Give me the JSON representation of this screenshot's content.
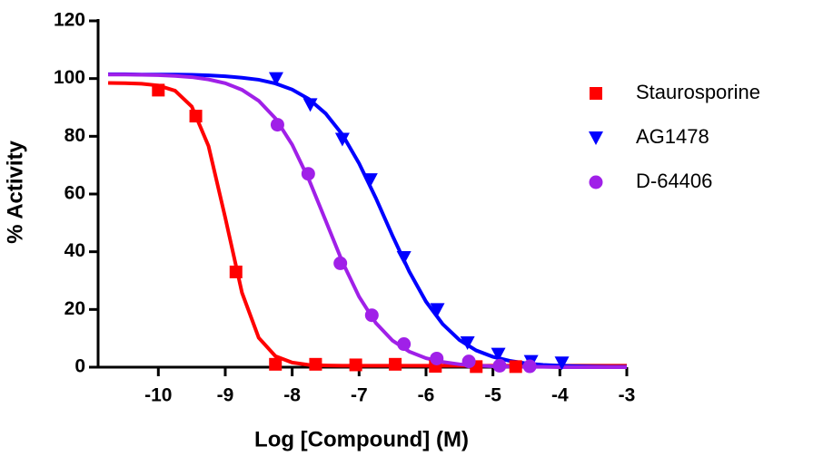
{
  "chart_data": {
    "type": "dose-response",
    "x_label": "Log [Compound] (M)",
    "y_label": "% Activity",
    "xlim": [
      -10.9,
      -3
    ],
    "xticks": [
      -10,
      -9,
      -8,
      -7,
      -6,
      -5,
      -4,
      -3
    ],
    "ylim": [
      0,
      120
    ],
    "yticks": [
      0,
      20,
      40,
      60,
      80,
      100,
      120
    ],
    "curve_x": [
      -10.75,
      -10.5,
      -10.25,
      -10,
      -9.75,
      -9.5,
      -9.25,
      -9,
      -8.75,
      -8.5,
      -8.25,
      -8,
      -7.75,
      -7.5,
      -7.25,
      -7,
      -6.75,
      -6.5,
      -6.25,
      -6,
      -5.75,
      -5.5,
      -5.25,
      -5,
      -4.75,
      -4.5,
      -4.25,
      -4,
      -3.75,
      -3.5,
      -3.25,
      -3
    ],
    "series": [
      {
        "name": "Staurosporine",
        "color": "#ff0000",
        "marker": "square",
        "x": [
          -10.0,
          -9.44,
          -8.84,
          -8.25,
          -7.65,
          -7.05,
          -6.46,
          -5.86,
          -5.25,
          -4.66
        ],
        "values": [
          96,
          87,
          33,
          1,
          1,
          0.8,
          1,
          0.3,
          0.2,
          0.2
        ],
        "curve": [
          98.5,
          98.4,
          98.2,
          97.6,
          95.8,
          90.3,
          76.6,
          51.8,
          25.8,
          10.2,
          3.8,
          1.6,
          0.8,
          0.6,
          0.5,
          0.5,
          0.5,
          0.5,
          0.5,
          0.5,
          0.5,
          0.5,
          0.5,
          0.5,
          0.5,
          0.5,
          0.5,
          0.5,
          0.5,
          0.5,
          0.5,
          0.5
        ]
      },
      {
        "name": "AG1478",
        "color": "#0000ff",
        "marker": "triangle-down",
        "x": [
          -8.24,
          -7.73,
          -7.25,
          -6.83,
          -6.33,
          -5.83,
          -5.38,
          -4.92,
          -4.43,
          -3.97
        ],
        "values": [
          100,
          91,
          79,
          65,
          38,
          20,
          8.5,
          4.5,
          2,
          1.5
        ],
        "curve": [
          101.5,
          101.5,
          101.4,
          101.4,
          101.4,
          101.3,
          101.1,
          100.8,
          100.3,
          99.6,
          98.3,
          96.2,
          92.9,
          87.9,
          80.6,
          70.6,
          58.6,
          45.5,
          33.1,
          22.7,
          14.9,
          9.4,
          5.8,
          3.6,
          2.2,
          1.3,
          0.8,
          0.5,
          0.3,
          0.2,
          0.1,
          0.1
        ]
      },
      {
        "name": "D-64406",
        "color": "#a020e8",
        "marker": "circle",
        "x": [
          -8.22,
          -7.76,
          -7.28,
          -6.81,
          -6.33,
          -5.84,
          -5.36,
          -4.9,
          -4.45
        ],
        "values": [
          84,
          67,
          36,
          18,
          8,
          3,
          2,
          0.5,
          0.3
        ],
        "curve": [
          101.4,
          101.4,
          101.3,
          101.2,
          100.9,
          100.5,
          99.7,
          98.4,
          96.1,
          92.3,
          86.2,
          77.1,
          65,
          50.8,
          36.5,
          24.4,
          15.3,
          9.2,
          5.4,
          3.1,
          1.8,
          1.0,
          0.6,
          0.3,
          0.2,
          0.1,
          0.1,
          0,
          0,
          0,
          0,
          0
        ]
      }
    ]
  }
}
